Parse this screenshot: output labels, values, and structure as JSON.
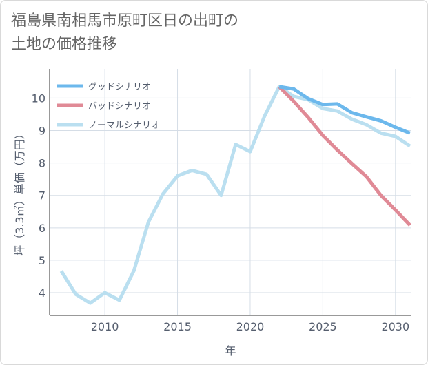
{
  "title_lines": [
    "福島県南相馬市原町区日の出町の",
    "土地の価格推移"
  ],
  "chart_data": {
    "type": "line",
    "xlabel": "年",
    "ylabel": "坪（3.3㎡）単価（万円）",
    "xlim": [
      2006.2,
      2031.1
    ],
    "ylim": [
      3.3,
      10.9
    ],
    "xticks": [
      2010,
      2015,
      2020,
      2025,
      2030
    ],
    "yticks": [
      4,
      5,
      6,
      7,
      8,
      9,
      10
    ],
    "grid": true,
    "legend_position": "top-left",
    "series": [
      {
        "name": "グッドシナリオ",
        "color": "#6cb8ec",
        "x": [
          2022,
          2023,
          2024,
          2025,
          2026,
          2027,
          2028,
          2029,
          2030,
          2031
        ],
        "values": [
          10.35,
          10.28,
          9.98,
          9.8,
          9.82,
          9.55,
          9.42,
          9.3,
          9.1,
          8.92
        ]
      },
      {
        "name": "バッドシナリオ",
        "color": "#e08a96",
        "x": [
          2022,
          2023,
          2024,
          2025,
          2026,
          2027,
          2028,
          2029,
          2030,
          2031
        ],
        "values": [
          10.35,
          9.9,
          9.4,
          8.85,
          8.4,
          7.98,
          7.58,
          7.0,
          6.55,
          6.08
        ]
      },
      {
        "name": "ノーマルシナリオ",
        "color": "#badff0",
        "x": [
          2007,
          2008,
          2009,
          2010,
          2011,
          2012,
          2013,
          2014,
          2015,
          2016,
          2017,
          2018,
          2019,
          2020,
          2021,
          2022,
          2023,
          2024,
          2025,
          2026,
          2027,
          2028,
          2029,
          2030,
          2031
        ],
        "values": [
          4.67,
          3.95,
          3.68,
          4.0,
          3.77,
          4.68,
          6.18,
          7.05,
          7.6,
          7.77,
          7.65,
          7.0,
          8.57,
          8.35,
          9.45,
          10.35,
          10.05,
          9.95,
          9.68,
          9.6,
          9.35,
          9.18,
          8.92,
          8.82,
          8.52
        ]
      }
    ]
  }
}
